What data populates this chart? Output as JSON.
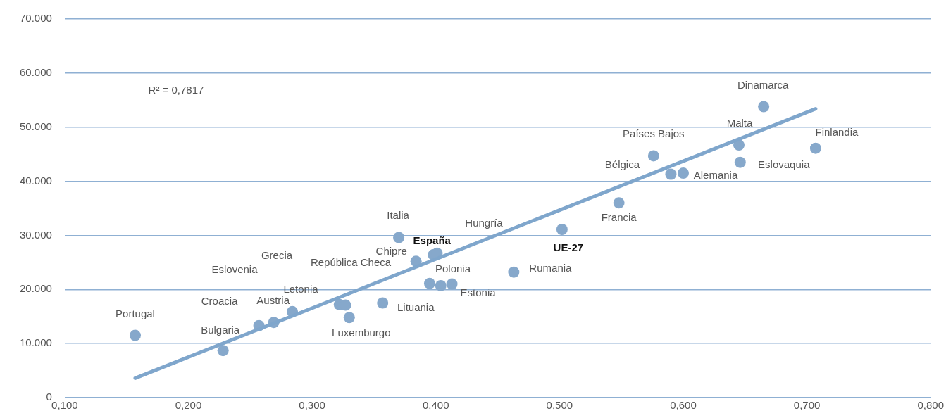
{
  "chart_data": {
    "type": "scatter",
    "series": [
      {
        "type": "scatter",
        "color": "#86a8cb",
        "marker": "circle",
        "x": [
          0.157,
          0.228,
          0.257,
          0.269,
          0.284,
          0.322,
          0.327,
          0.33,
          0.357,
          0.37,
          0.384,
          0.398,
          0.401,
          0.395,
          0.404,
          0.413,
          0.463,
          0.502,
          0.548,
          0.59,
          0.6,
          0.576,
          0.645,
          0.646,
          0.665,
          0.707
        ],
        "values": [
          11500,
          8700,
          13300,
          13900,
          15900,
          17200,
          17100,
          14800,
          17500,
          29600,
          25200,
          26400,
          26700,
          21100,
          20700,
          21000,
          23200,
          31100,
          36000,
          41300,
          41500,
          44700,
          46700,
          43500,
          53800,
          46100
        ]
      },
      {
        "type": "line",
        "color": "#7fa6cc",
        "marker": "none",
        "x": [
          0.157,
          0.707
        ],
        "values": [
          3600,
          53400
        ]
      }
    ],
    "xlim": [
      0.1,
      0.8
    ],
    "xticks": [
      {
        "value": 0.1,
        "label": "0,100"
      },
      {
        "value": 0.2,
        "label": "0,200"
      },
      {
        "value": 0.3,
        "label": "0,300"
      },
      {
        "value": 0.4,
        "label": "0,400"
      },
      {
        "value": 0.5,
        "label": "0,500"
      },
      {
        "value": 0.6,
        "label": "0,600"
      },
      {
        "value": 0.7,
        "label": "0,700"
      },
      {
        "value": 0.8,
        "label": "0,800"
      }
    ],
    "ylim": [
      0,
      70000
    ],
    "yticks": [
      0,
      {
        "value": 10000,
        "label": "10.000"
      },
      {
        "value": 20000,
        "label": "20.000"
      },
      {
        "value": 30000,
        "label": "30.000"
      },
      {
        "value": 40000,
        "label": "40.000"
      },
      {
        "value": 50000,
        "label": "50.000"
      },
      {
        "value": 60000,
        "label": "60.000"
      },
      {
        "value": 70000,
        "label": "70.000"
      }
    ],
    "grid": "y",
    "legend": false,
    "annotations": [
      "R² = 0,7817",
      {
        "text": "Portugal",
        "x": 0.157,
        "y": 11500
      },
      {
        "text": "Bulgaria",
        "x": 0.228,
        "y": 8700
      },
      {
        "text": "Croacia",
        "x": 0.257,
        "y": 13300
      },
      {
        "text": "Austria",
        "x": 0.269,
        "y": 13900
      },
      {
        "text": "Letonia",
        "x": 0.284,
        "y": 15900
      },
      "Eslovenia",
      "Grecia",
      "República Checa",
      {
        "text": "Luxemburgo",
        "x": 0.33,
        "y": 14800
      },
      {
        "text": "Lituania",
        "x": 0.357,
        "y": 17500
      },
      {
        "text": "Italia",
        "x": 0.37,
        "y": 29600
      },
      {
        "text": "Chipre",
        "x": 0.384,
        "y": 25200
      },
      {
        "text": "España",
        "x": 0.398,
        "y": 26400
      },
      "Hungría",
      {
        "text": "Polonia",
        "x": 0.395,
        "y": 21100
      },
      {
        "text": "Estonia",
        "x": 0.413,
        "y": 21000
      },
      {
        "text": "Rumania",
        "x": 0.463,
        "y": 23200
      },
      {
        "text": "UE-27",
        "x": 0.502,
        "y": 31100
      },
      {
        "text": "Francia",
        "x": 0.548,
        "y": 36000
      },
      {
        "text": "Bélgica",
        "x": 0.59,
        "y": 41300
      },
      {
        "text": "Alemania",
        "x": 0.6,
        "y": 41500
      },
      {
        "text": "Países Bajos",
        "x": 0.576,
        "y": 44700
      },
      {
        "text": "Malta",
        "x": 0.645,
        "y": 46700
      },
      {
        "text": "Eslovaquia",
        "x": 0.646,
        "y": 43500
      },
      {
        "text": "Dinamarca",
        "x": 0.665,
        "y": 53800
      },
      {
        "text": "Finlandia",
        "x": 0.707,
        "y": 46100
      }
    ]
  }
}
